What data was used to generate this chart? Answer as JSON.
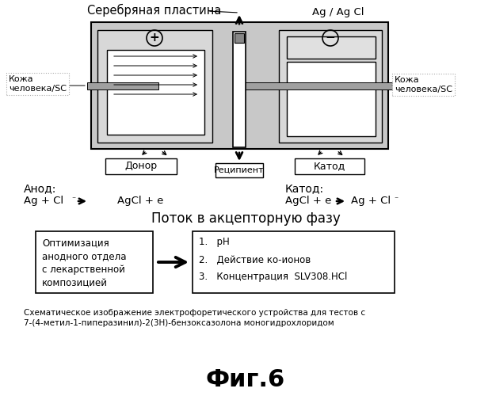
{
  "title": "Серебряная пластина",
  "ag_agcl_label": "Ag / Ag Cl",
  "skin_left": "Кожа\nчеловека/SC",
  "skin_right": "Кожа\nчеловека/SC",
  "donor_label": "Донор",
  "cathode_label": "Катод",
  "recipient_label": "Реципиент",
  "anode_title": "Анод:",
  "cathode_title": "Катод:",
  "flow_title": "Поток в акцепторную фазу",
  "box_left_text": "Оптимизация\nанодного отдела\nс лекарственной\nкомпозицией",
  "box_right_items": [
    "1.   pH",
    "2.   Действие ко-ионов",
    "3.   Концентрация  SLV308.HCl"
  ],
  "caption_line1": "Схематическое изображение электрофоретического устройства для тестов с",
  "caption_line2": "7-(4-метил-1-пиперазинил)-2(3Н)-бензоксазолона моногидрохлоридом",
  "fig_label": "Фиг.6",
  "bg_color": "#ffffff",
  "text_color": "#000000"
}
